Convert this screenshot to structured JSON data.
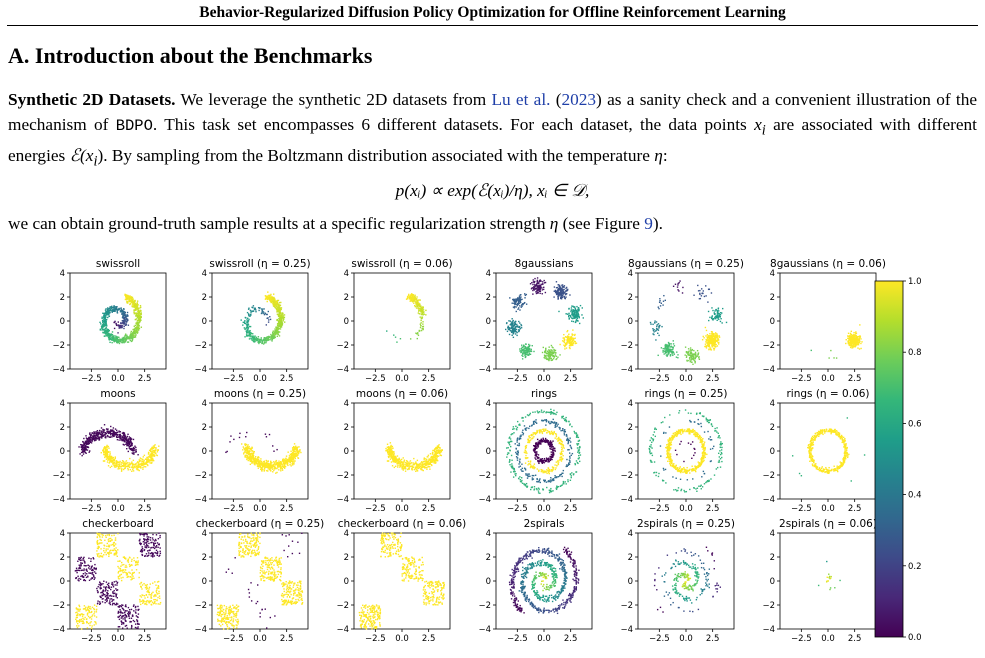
{
  "running_header": "Behavior-Regularized Diffusion Policy Optimization for Offline Reinforcement Learning",
  "section_title": "A. Introduction about the Benchmarks",
  "paragraph1": {
    "run_in": "Synthetic 2D Datasets.",
    "t1": " We leverage the synthetic 2D datasets from ",
    "cite_author": "Lu et al.",
    "t2": " (",
    "cite_year": "2023",
    "t3": ") as a sanity check and a convenient illustration of the mechanism of ",
    "method": "BDPO",
    "t4": ". This task set encompasses 6 different datasets. For each dataset, the data points ",
    "var_x": "x",
    "sub_i": "i",
    "t5": " are associated with different energies ",
    "energy": "ℰ(x",
    "energy_sub": "i",
    "energy_close": ")",
    "t6": ". By sampling from the Boltzmann distribution associated with the temperature ",
    "eta": "η",
    "t7": ":"
  },
  "equation": "p(xᵢ) ∝ exp(ℰ(xᵢ)/η), xᵢ ∈ 𝒟,",
  "paragraph2": {
    "t1": "we can obtain ground-truth sample results at a specific regularization strength ",
    "eta": "η",
    "t2": " (see Figure ",
    "fig_ref": "9",
    "t3": ")."
  },
  "chart_data": {
    "type": "scatter",
    "layout": "3x6 grid of 2D scatter panels",
    "colormap": "viridis",
    "colorbar": {
      "ticks": [
        "0.0",
        "0.2",
        "0.4",
        "0.6",
        "0.8",
        "1.0"
      ],
      "range": [
        0,
        1
      ]
    },
    "xticks": [
      "−2.5",
      "0.0",
      "2.5"
    ],
    "yticks": [
      "4",
      "2",
      "0",
      "−2",
      "−4"
    ],
    "xlim": [
      -4.5,
      4.5
    ],
    "ylim": [
      -4,
      4
    ],
    "panels": [
      {
        "title": "swissroll",
        "dataset": "swissroll",
        "eta": null
      },
      {
        "title": "swissroll (η = 0.25)",
        "dataset": "swissroll",
        "eta": 0.25
      },
      {
        "title": "swissroll (η = 0.06)",
        "dataset": "swissroll",
        "eta": 0.06
      },
      {
        "title": "8gaussians",
        "dataset": "8gaussians",
        "eta": null
      },
      {
        "title": "8gaussians (η = 0.25)",
        "dataset": "8gaussians",
        "eta": 0.25
      },
      {
        "title": "8gaussians (η = 0.06)",
        "dataset": "8gaussians",
        "eta": 0.06
      },
      {
        "title": "moons",
        "dataset": "moons",
        "eta": null
      },
      {
        "title": "moons (η = 0.25)",
        "dataset": "moons",
        "eta": 0.25
      },
      {
        "title": "moons (η = 0.06)",
        "dataset": "moons",
        "eta": 0.06
      },
      {
        "title": "rings",
        "dataset": "rings",
        "eta": null
      },
      {
        "title": "rings (η = 0.25)",
        "dataset": "rings",
        "eta": 0.25
      },
      {
        "title": "rings (η = 0.06)",
        "dataset": "rings",
        "eta": 0.06
      },
      {
        "title": "checkerboard",
        "dataset": "checkerboard",
        "eta": null
      },
      {
        "title": "checkerboard (η = 0.25)",
        "dataset": "checkerboard",
        "eta": 0.25
      },
      {
        "title": "checkerboard (η = 0.06)",
        "dataset": "checkerboard",
        "eta": 0.06
      },
      {
        "title": "2spirals",
        "dataset": "2spirals",
        "eta": null
      },
      {
        "title": "2spirals (η = 0.25)",
        "dataset": "2spirals",
        "eta": 0.25
      },
      {
        "title": "2spirals (η = 0.06)",
        "dataset": "2spirals",
        "eta": 0.06
      }
    ]
  }
}
